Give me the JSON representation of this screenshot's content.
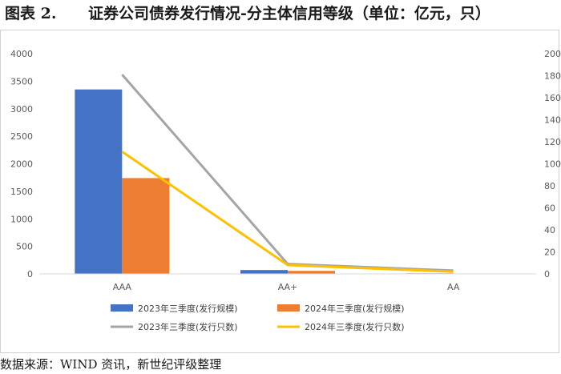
{
  "figure": {
    "label": "图表 2.",
    "title": "证券公司债券发行情况-分主体信用等级（单位：亿元，只）"
  },
  "source": "数据来源：WIND 资讯，新世纪评级整理",
  "chart_data": {
    "type": "bar",
    "categories": [
      "AAA",
      "AA+",
      "AA"
    ],
    "left_axis": {
      "ylim": [
        0,
        4000
      ],
      "ticks": [
        "0",
        "500",
        "1000",
        "1500",
        "2000",
        "2500",
        "3000",
        "3500",
        "4000"
      ]
    },
    "right_axis": {
      "ylim": [
        0,
        200
      ],
      "ticks": [
        "0",
        "20",
        "40",
        "60",
        "80",
        "100",
        "120",
        "140",
        "160",
        "180",
        "200"
      ]
    },
    "series": [
      {
        "name": "2023年三季度(发行规模)",
        "kind": "bar",
        "axis": "left",
        "color": "#4472C4",
        "values": [
          3350,
          70,
          10
        ]
      },
      {
        "name": "2024年三季度(发行规模)",
        "kind": "bar",
        "axis": "left",
        "color": "#ED7D31",
        "values": [
          1740,
          55,
          5
        ]
      },
      {
        "name": "2023年三季度(发行只数)",
        "kind": "line",
        "axis": "right",
        "color": "#A5A5A5",
        "values": [
          181,
          9,
          3
        ]
      },
      {
        "name": "2024年三季度(发行只数)",
        "kind": "line",
        "axis": "right",
        "color": "#FFC000",
        "values": [
          111,
          8,
          2
        ]
      }
    ],
    "grid": false,
    "legend": "bottom"
  }
}
